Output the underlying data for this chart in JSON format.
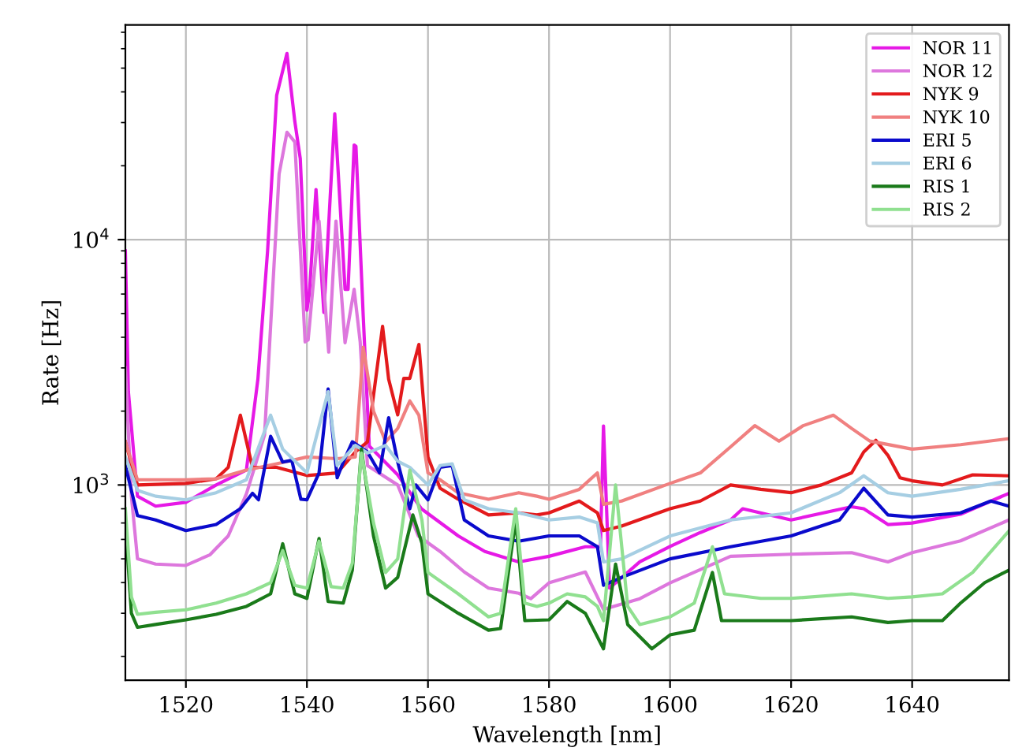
{
  "chart_data": {
    "type": "line",
    "xlabel": "Wavelength [nm]",
    "ylabel": "Rate [Hz]",
    "log": "y",
    "grid": true,
    "legend": "top right",
    "xlim": [
      1510,
      1656
    ],
    "xticks": [
      1520,
      1540,
      1560,
      1580,
      1600,
      1620,
      1640
    ],
    "ylim": [
      160,
      75000
    ],
    "yticks": [
      {
        "value": 1000,
        "label": "10$^{3}$"
      },
      {
        "value": 10000,
        "label": "10$^{4}$"
      }
    ],
    "series": [
      {
        "name": "NOR 11",
        "color": "#e619e6",
        "x": [
          1510,
          1510.5,
          1512,
          1515,
          1520,
          1525,
          1530,
          1531.9,
          1533.5,
          1535,
          1536.7,
          1538,
          1538.9,
          1540,
          1540.4,
          1541.5,
          1542.8,
          1544.6,
          1546.3,
          1546.8,
          1547.8,
          1548.1,
          1549.3,
          1550.3,
          1555,
          1558.9,
          1565,
          1569.4,
          1575,
          1580,
          1586,
          1588.5,
          1589,
          1590,
          1595,
          1600,
          1605,
          1610,
          1612,
          1620,
          1630,
          1632,
          1636,
          1640,
          1648,
          1656
        ],
        "values": [
          9000,
          2400,
          900,
          820,
          850,
          1000,
          1150,
          2700,
          9000,
          38700,
          57400,
          30300,
          21400,
          5150,
          6000,
          16000,
          5050,
          32600,
          6270,
          6270,
          24300,
          24000,
          4900,
          1440,
          1100,
          800,
          620,
          536,
          486,
          512,
          560,
          560,
          1740,
          380,
          486,
          562,
          640,
          720,
          800,
          720,
          815,
          800,
          690,
          700,
          760,
          925
        ]
      },
      {
        "name": "NOR 12",
        "color": "#dd77dd",
        "x": [
          1510,
          1511,
          1512,
          1515,
          1520,
          1524,
          1527,
          1530,
          1533,
          1535.4,
          1536.7,
          1538,
          1539.7,
          1540.2,
          1542,
          1543.6,
          1544.8,
          1546.3,
          1547.8,
          1548.8,
          1550,
          1555,
          1558.4,
          1562,
          1566,
          1570,
          1575,
          1577,
          1580,
          1586,
          1589,
          1595,
          1600,
          1610,
          1620,
          1630,
          1636,
          1640,
          1648,
          1656
        ],
        "values": [
          3000,
          900,
          500,
          476,
          470,
          520,
          620,
          920,
          1600,
          18500,
          27400,
          25000,
          3830,
          3900,
          11900,
          3480,
          11900,
          3800,
          6270,
          3830,
          1200,
          1000,
          620,
          536,
          442,
          380,
          362,
          344,
          399,
          442,
          311,
          344,
          399,
          512,
          522,
          530,
          486,
          530,
          592,
          720
        ]
      },
      {
        "name": "NYK 9",
        "color": "#e31a1c",
        "x": [
          1510,
          1512,
          1520,
          1525,
          1527,
          1529,
          1531,
          1535,
          1540,
          1545,
          1548,
          1550,
          1552.5,
          1553.5,
          1555,
          1556,
          1557,
          1558.5,
          1560,
          1562,
          1565,
          1570,
          1575,
          1578,
          1580,
          1585,
          1588,
          1589,
          1592,
          1600,
          1605,
          1610,
          1615,
          1620,
          1625,
          1630,
          1632,
          1634,
          1636,
          1638,
          1640,
          1645,
          1650,
          1656
        ],
        "values": [
          1500,
          1000,
          1015,
          1060,
          1180,
          1925,
          1180,
          1180,
          1093,
          1120,
          1363,
          1500,
          4430,
          2700,
          1930,
          2720,
          2720,
          3740,
          1300,
          970,
          875,
          755,
          770,
          755,
          770,
          860,
          770,
          652,
          680,
          800,
          860,
          1000,
          960,
          930,
          1000,
          1120,
          1363,
          1520,
          1320,
          1070,
          1040,
          1000,
          1100,
          1090
        ]
      },
      {
        "name": "NYK 10",
        "color": "#f08080",
        "x": [
          1510,
          1512,
          1520,
          1525,
          1530,
          1535,
          1540,
          1545,
          1548,
          1549.3,
          1551,
          1553,
          1555,
          1557,
          1558.5,
          1560,
          1562,
          1565,
          1570,
          1575,
          1578,
          1580,
          1585,
          1588,
          1589,
          1592,
          1600,
          1605,
          1610,
          1614,
          1618,
          1622,
          1627,
          1630,
          1633,
          1640,
          1648,
          1656
        ],
        "values": [
          1500,
          1050,
          1050,
          1060,
          1150,
          1220,
          1300,
          1280,
          1300,
          3640,
          2000,
          1500,
          1700,
          2200,
          1925,
          1120,
          1050,
          930,
          875,
          930,
          900,
          875,
          960,
          1120,
          834,
          860,
          1015,
          1120,
          1430,
          1745,
          1510,
          1745,
          1925,
          1700,
          1510,
          1400,
          1460,
          1545
        ]
      },
      {
        "name": "ERI 5",
        "color": "#0a0acc",
        "x": [
          1510,
          1512,
          1515,
          1520,
          1525,
          1529,
          1531,
          1532,
          1534,
          1536,
          1537.5,
          1539,
          1540,
          1542,
          1543.5,
          1545,
          1546,
          1547.5,
          1550,
          1552,
          1553.5,
          1555,
          1557,
          1558,
          1560,
          1562,
          1564,
          1566,
          1570,
          1575,
          1580,
          1585,
          1588,
          1589,
          1592,
          1600,
          1610,
          1620,
          1628,
          1632,
          1636,
          1640,
          1648,
          1653,
          1656
        ],
        "values": [
          1200,
          750,
          720,
          652,
          690,
          800,
          925,
          870,
          1580,
          1240,
          1260,
          875,
          870,
          1120,
          2460,
          1070,
          1240,
          1500,
          1363,
          1120,
          1880,
          1240,
          800,
          1000,
          870,
          1180,
          1200,
          720,
          620,
          590,
          620,
          620,
          560,
          390,
          420,
          500,
          560,
          620,
          720,
          970,
          755,
          740,
          770,
          860,
          820
        ]
      },
      {
        "name": "ERI 6",
        "color": "#a6cee3",
        "x": [
          1510,
          1512,
          1515,
          1520,
          1525,
          1530,
          1534,
          1536,
          1540,
          1543.5,
          1545,
          1548,
          1550,
          1553,
          1555,
          1557,
          1560,
          1562,
          1564,
          1566,
          1570,
          1575,
          1580,
          1585,
          1588,
          1589,
          1592,
          1600,
          1610,
          1620,
          1628,
          1632,
          1636,
          1640,
          1648,
          1656
        ],
        "values": [
          1300,
          950,
          900,
          870,
          930,
          1050,
          1925,
          1400,
          1120,
          2400,
          1200,
          1450,
          1350,
          1450,
          1250,
          1180,
          1000,
          1200,
          1220,
          870,
          800,
          770,
          720,
          740,
          700,
          486,
          500,
          620,
          720,
          770,
          930,
          1090,
          930,
          900,
          960,
          1040
        ]
      },
      {
        "name": "RIS 1",
        "color": "#1a7a1a",
        "x": [
          1510,
          1511,
          1512,
          1515,
          1520,
          1525,
          1530,
          1534,
          1536,
          1538,
          1540,
          1542,
          1543.5,
          1546,
          1547.5,
          1549,
          1551,
          1553,
          1555,
          1557.5,
          1559,
          1560,
          1565,
          1570,
          1572,
          1574.5,
          1576,
          1580,
          1583,
          1586,
          1589,
          1591,
          1593,
          1597,
          1600,
          1604,
          1607,
          1608.5,
          1615,
          1620,
          1630,
          1636,
          1640,
          1645,
          1648,
          1652,
          1656
        ],
        "values": [
          700,
          300,
          263,
          270,
          282,
          297,
          320,
          360,
          576,
          360,
          345,
          605,
          335,
          330,
          450,
          1400,
          620,
          380,
          420,
          755,
          580,
          360,
          300,
          256,
          260,
          720,
          280,
          282,
          335,
          300,
          215,
          476,
          270,
          215,
          245,
          256,
          440,
          280,
          280,
          280,
          290,
          275,
          280,
          280,
          330,
          400,
          450
        ]
      },
      {
        "name": "RIS 2",
        "color": "#90e090",
        "x": [
          1510,
          1511,
          1512,
          1515,
          1520,
          1525,
          1530,
          1534,
          1536,
          1538,
          1540,
          1542,
          1544,
          1546,
          1547.5,
          1549,
          1551,
          1553,
          1555,
          1557,
          1559,
          1560,
          1565,
          1570,
          1572,
          1574.5,
          1576,
          1578,
          1580,
          1583,
          1586,
          1588,
          1589,
          1591,
          1593,
          1595,
          1600,
          1604,
          1607,
          1609,
          1615,
          1620,
          1630,
          1636,
          1640,
          1645,
          1650,
          1656
        ],
        "values": [
          800,
          350,
          297,
          303,
          310,
          330,
          360,
          400,
          540,
          390,
          380,
          590,
          385,
          380,
          480,
          1350,
          700,
          440,
          500,
          1150,
          720,
          440,
          360,
          290,
          300,
          800,
          330,
          320,
          330,
          360,
          350,
          320,
          280,
          1000,
          320,
          270,
          290,
          330,
          560,
          360,
          345,
          345,
          360,
          345,
          350,
          360,
          440,
          650
        ]
      }
    ]
  }
}
